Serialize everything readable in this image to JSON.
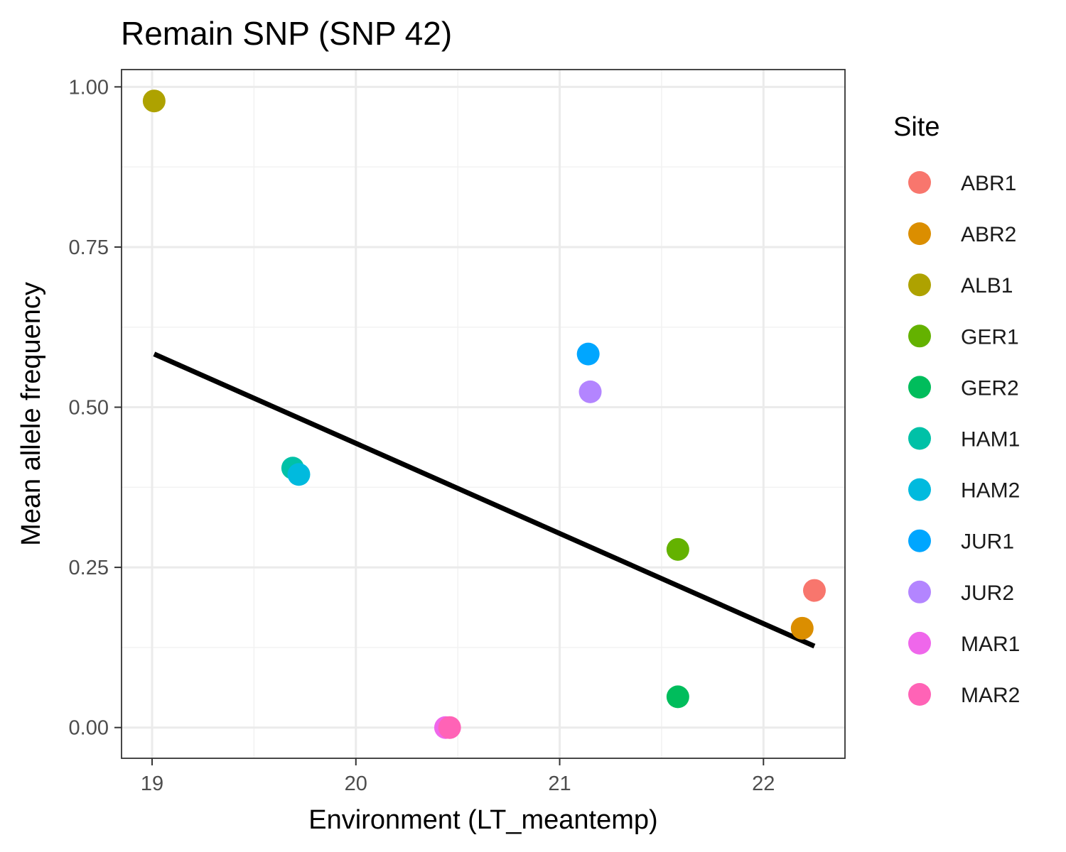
{
  "chart_data": {
    "type": "scatter",
    "title": "Remain SNP (SNP 42)",
    "xlabel": "Environment (LT_meantemp)",
    "ylabel": "Mean allele frequency",
    "xlim": [
      18.85,
      22.4
    ],
    "ylim": [
      -0.048,
      1.027
    ],
    "x_ticks": [
      19,
      20,
      21,
      22
    ],
    "x_tick_labels": [
      "19",
      "20",
      "21",
      "22"
    ],
    "y_ticks": [
      0,
      0.25,
      0.5,
      0.75,
      1.0
    ],
    "y_tick_labels": [
      "0.00",
      "0.25",
      "0.50",
      "0.75",
      "1.00"
    ],
    "grid": true,
    "legend": {
      "title": "Site",
      "placement": "right",
      "entries": [
        "ABR1",
        "ABR2",
        "ALB1",
        "GER1",
        "GER2",
        "HAM1",
        "HAM2",
        "JUR1",
        "JUR2",
        "MAR1",
        "MAR2"
      ]
    },
    "colors": {
      "ABR1": "#F8766D",
      "ABR2": "#DB8E00",
      "ALB1": "#AEA200",
      "GER1": "#64B200",
      "GER2": "#00BD5C",
      "HAM1": "#00C1A7",
      "HAM2": "#00BADE",
      "JUR1": "#00A6FF",
      "JUR2": "#B385FF",
      "MAR1": "#EF67EB",
      "MAR2": "#FF63B6"
    },
    "points": [
      {
        "site": "ALB1",
        "x": 19.01,
        "y": 0.978
      },
      {
        "site": "HAM1",
        "x": 19.69,
        "y": 0.405
      },
      {
        "site": "HAM2",
        "x": 19.72,
        "y": 0.395
      },
      {
        "site": "MAR1",
        "x": 20.44,
        "y": 0.0
      },
      {
        "site": "MAR2",
        "x": 20.46,
        "y": 0.0
      },
      {
        "site": "JUR1",
        "x": 21.14,
        "y": 0.583
      },
      {
        "site": "JUR2",
        "x": 21.15,
        "y": 0.524
      },
      {
        "site": "GER1",
        "x": 21.58,
        "y": 0.278
      },
      {
        "site": "GER2",
        "x": 21.58,
        "y": 0.048
      },
      {
        "site": "ABR2",
        "x": 22.19,
        "y": 0.155
      },
      {
        "site": "ABR1",
        "x": 22.25,
        "y": 0.214
      }
    ],
    "trend_line": {
      "x": [
        19.01,
        22.25
      ],
      "y": [
        0.583,
        0.127
      ],
      "color": "#000000"
    }
  }
}
